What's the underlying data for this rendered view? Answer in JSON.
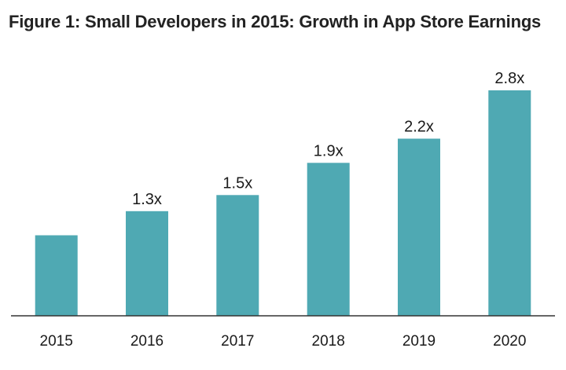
{
  "chart_data": {
    "type": "bar",
    "title": "Figure 1: Small Developers in 2015: Growth in App Store Earnings",
    "categories": [
      "2015",
      "2016",
      "2017",
      "2018",
      "2019",
      "2020"
    ],
    "values": [
      1.0,
      1.3,
      1.5,
      1.9,
      2.2,
      2.8
    ],
    "data_labels": [
      "",
      "1.3x",
      "1.5x",
      "1.9x",
      "2.2x",
      "2.8x"
    ],
    "xlabel": "",
    "ylabel": "",
    "ylim": [
      0,
      3.0
    ],
    "grid": false,
    "legend": "none",
    "bar_color": "#4fa9b3",
    "axis_color": "#333333"
  }
}
